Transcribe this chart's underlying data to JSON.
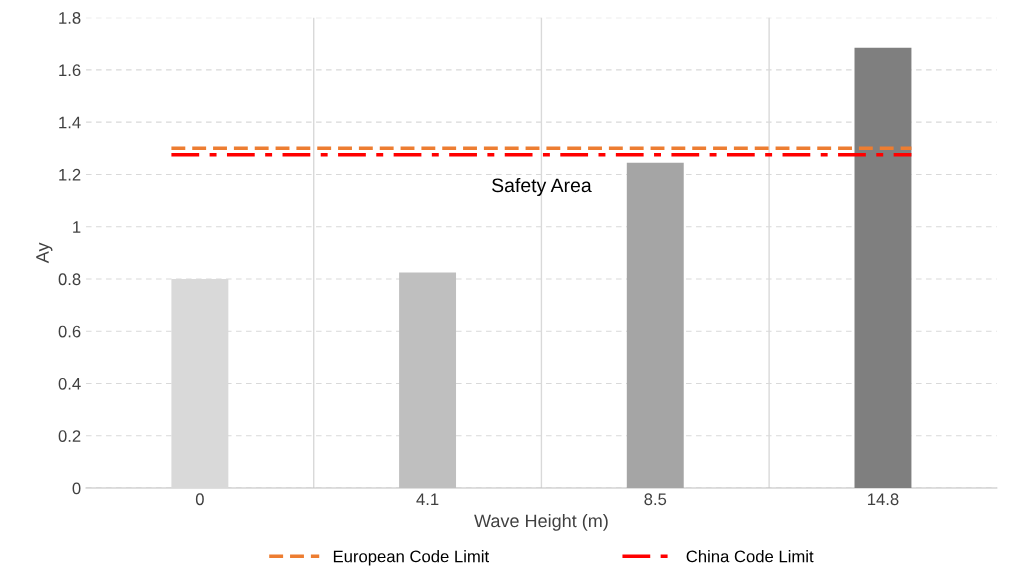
{
  "chart_data": {
    "type": "bar",
    "xlabel": "Wave Height (m)",
    "ylabel": "Ay",
    "categories": [
      "0",
      "4.1",
      "8.5",
      "14.8"
    ],
    "values": [
      0.8,
      0.825,
      1.245,
      1.685
    ],
    "colors": [
      "#d9d9d9",
      "#bfbfbf",
      "#a5a5a5",
      "#7f7f7f"
    ],
    "ylim": [
      0,
      1.8
    ],
    "yticks": [
      0,
      {
        "value": 0.2,
        "label": "0.2"
      },
      {
        "value": 0.4,
        "label": "0.4"
      },
      {
        "value": 0.6,
        "label": "0.6"
      },
      {
        "value": 0.8,
        "label": "0.8"
      },
      1,
      {
        "value": 1.2,
        "label": "1.2"
      },
      {
        "value": 1.4,
        "label": "1.4"
      },
      {
        "value": 1.6,
        "label": "1.6"
      },
      {
        "value": 1.8,
        "label": "1.8"
      }
    ],
    "ref_lines": [
      {
        "axis": "y",
        "value": 1.3,
        "label": "European Code Limit",
        "color": "#ed7d31",
        "line_style": "dashed"
      },
      {
        "axis": "y",
        "value": 1.275,
        "label": "China Code Limit",
        "color": "#ff0000",
        "line_style": "dashdot"
      }
    ],
    "annotations": [
      "Safety Area"
    ],
    "grid": true,
    "legend": "bottom"
  }
}
